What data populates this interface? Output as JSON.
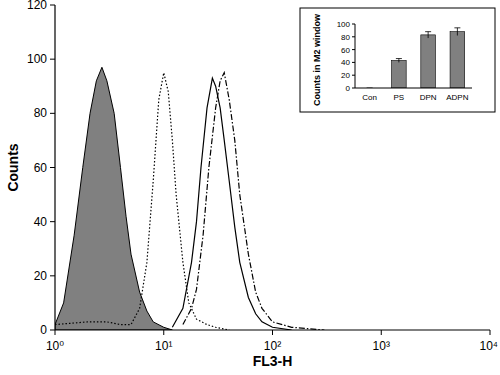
{
  "chart_data": [
    {
      "type": "line",
      "x_label": "FL3-H",
      "y_label": "Counts",
      "log": "x",
      "xlim": [
        1,
        10000
      ],
      "xticks": [
        {
          "value": 1,
          "label": "10⁰"
        },
        {
          "value": 10,
          "label": "10¹"
        },
        {
          "value": 100,
          "label": "10²"
        },
        {
          "value": 1000,
          "label": "10³"
        },
        {
          "value": 10000,
          "label": "10⁴"
        }
      ],
      "ylim": [
        0,
        120
      ],
      "yticks": [
        0,
        20,
        40,
        60,
        80,
        100,
        120
      ],
      "grid": false,
      "series": [
        {
          "type": "area",
          "color": "#808080",
          "line_style": "solid",
          "x": [
            1,
            1.2,
            1.5,
            1.8,
            2.1,
            2.4,
            2.7,
            3.0,
            3.5,
            4,
            4.5,
            5,
            6,
            7,
            8,
            10,
            12
          ],
          "values": [
            2,
            10,
            35,
            60,
            80,
            92,
            97,
            92,
            80,
            60,
            42,
            28,
            14,
            7,
            3,
            1,
            0
          ]
        },
        {
          "type": "line",
          "color": "#000000",
          "line_style": "dotted",
          "x": [
            1,
            2,
            3,
            4,
            5,
            6,
            7,
            8,
            9,
            10,
            11,
            12,
            13,
            15,
            17,
            20,
            25,
            30,
            40
          ],
          "values": [
            2,
            3,
            3,
            2,
            2,
            8,
            25,
            55,
            85,
            95,
            88,
            70,
            50,
            25,
            10,
            4,
            2,
            1,
            0
          ]
        },
        {
          "type": "line",
          "color": "#000000",
          "line_style": "solid",
          "x": [
            12,
            15,
            18,
            20,
            22,
            25,
            28,
            30,
            33,
            36,
            40,
            45,
            50,
            60,
            70,
            80,
            100,
            150
          ],
          "values": [
            1,
            8,
            25,
            40,
            60,
            82,
            93,
            90,
            82,
            70,
            55,
            38,
            25,
            12,
            6,
            3,
            1,
            0
          ]
        },
        {
          "type": "line",
          "color": "#000000",
          "line_style": "dashdot",
          "x": [
            15,
            18,
            20,
            23,
            26,
            30,
            33,
            36,
            40,
            45,
            50,
            60,
            70,
            80,
            100,
            150,
            300
          ],
          "values": [
            2,
            8,
            15,
            35,
            60,
            82,
            92,
            95,
            85,
            70,
            50,
            28,
            14,
            8,
            3,
            1,
            0
          ]
        }
      ]
    },
    {
      "type": "bar",
      "y_label": "Counts in M2 window",
      "categories": [
        "Con",
        "PS",
        "DPN",
        "ADPN"
      ],
      "values": [
        0,
        43,
        83,
        88
      ],
      "errors": [
        0,
        3,
        5,
        6
      ],
      "color": "#808080",
      "ylim": [
        0,
        100
      ],
      "yticks": [
        0,
        20,
        40,
        60,
        80,
        100
      ],
      "grid": false
    }
  ]
}
